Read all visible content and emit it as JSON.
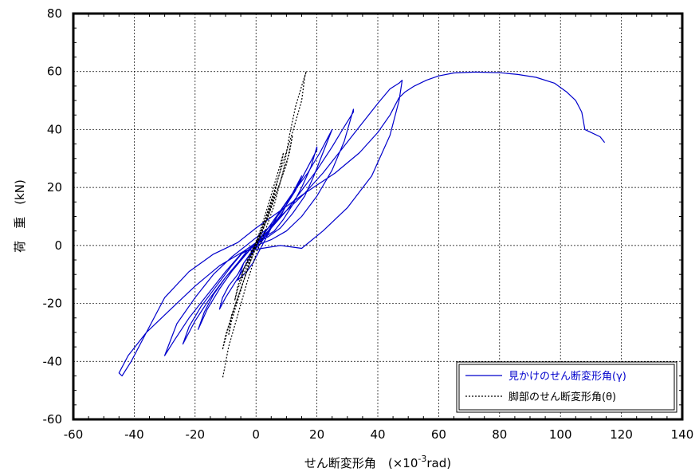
{
  "chart_data": {
    "type": "line",
    "xlabel": "せん断変形角　(×10",
    "xlabel_exp": "-3",
    "xlabel_unit": "rad)",
    "ylabel": "荷　重　(kN)",
    "xlim": [
      -60,
      140
    ],
    "ylim": [
      -60,
      80
    ],
    "xticks": [
      -60,
      -40,
      -20,
      0,
      20,
      40,
      60,
      80,
      100,
      120,
      140
    ],
    "yticks": [
      -60,
      -40,
      -20,
      0,
      20,
      40,
      60,
      80
    ],
    "grid": true,
    "legend_position": "bottom-right",
    "series": [
      {
        "name": "見かけのせん断変形角(γ)",
        "color": "#0000cc",
        "style": "solid",
        "x": [
          0,
          3,
          5,
          7,
          9,
          10,
          11,
          11,
          8,
          6,
          4,
          2,
          0,
          -2,
          -4,
          -5,
          -6,
          -6,
          -3,
          -1,
          1,
          3,
          5,
          8,
          10,
          13,
          15,
          15,
          12,
          10,
          7,
          5,
          3,
          1,
          -1,
          -4,
          -6,
          -9,
          -11,
          -12,
          -12,
          -10,
          -7,
          -4,
          -2,
          1,
          4,
          7,
          10,
          14,
          17,
          20,
          20,
          18,
          15,
          12,
          9,
          6,
          3,
          0,
          -3,
          -6,
          -10,
          -14,
          -17,
          -19,
          -19,
          -16,
          -12,
          -8,
          -4,
          0,
          4,
          8,
          12,
          17,
          21,
          24,
          25,
          22,
          19,
          16,
          12,
          8,
          4,
          0,
          -4,
          -8,
          -13,
          -18,
          -22,
          -24,
          -24,
          -20,
          -15,
          -10,
          -5,
          0,
          5,
          10,
          15,
          20,
          25,
          29,
          32,
          32,
          29,
          25,
          20,
          15,
          10,
          5,
          0,
          -5,
          -10,
          -16,
          -22,
          -27,
          -30,
          -30,
          -26,
          -20,
          -14,
          -8,
          -2,
          4,
          10,
          16,
          22,
          28,
          34,
          40,
          44,
          47,
          48,
          47,
          44,
          38,
          30,
          22,
          15,
          8,
          2,
          -4,
          -12,
          -20,
          -28,
          -36,
          -42,
          -45,
          -44,
          -41,
          -36,
          -30,
          -22,
          -14,
          -6,
          0,
          8,
          16,
          26,
          34,
          40,
          44,
          46,
          47,
          48,
          49,
          52,
          56,
          60,
          65,
          72,
          80,
          86,
          92,
          98,
          102,
          105,
          107,
          107.5,
          108,
          110,
          113,
          114.5
        ],
        "y": [
          0,
          3,
          6,
          9,
          12,
          14,
          16,
          16,
          12,
          9,
          6,
          3,
          0,
          -3,
          -6,
          -9,
          -12,
          -12,
          -9,
          -6,
          -2,
          2,
          6,
          10,
          14,
          19,
          24,
          24,
          18,
          14,
          10,
          6,
          3,
          0,
          -2,
          -6,
          -10,
          -14,
          -18,
          -22,
          -22,
          -18,
          -13,
          -8,
          -4,
          1,
          5,
          10,
          15,
          21,
          27,
          33,
          34,
          27,
          20,
          14,
          9,
          5,
          3,
          1,
          -2,
          -6,
          -11,
          -17,
          -23,
          -29,
          -29,
          -22,
          -15,
          -9,
          -4,
          1,
          6,
          12,
          18,
          25,
          32,
          38,
          40,
          32,
          24,
          17,
          11,
          6,
          3,
          1,
          -2,
          -7,
          -14,
          -21,
          -28,
          -34,
          -34,
          -26,
          -18,
          -11,
          -5,
          1,
          6,
          12,
          19,
          26,
          34,
          41,
          46,
          47,
          36,
          26,
          17,
          10,
          5,
          2,
          0,
          -3,
          -9,
          -17,
          -25,
          -33,
          -38,
          -38,
          -27,
          -18,
          -10,
          -4,
          1,
          6,
          12,
          18,
          25,
          33,
          41,
          49,
          54,
          56,
          57,
          50,
          38,
          24,
          13,
          5,
          -1,
          0,
          -1,
          -2,
          -7,
          -14,
          -22,
          -30,
          -38,
          -44,
          -45,
          -40,
          -30,
          -18,
          -9,
          -3,
          1,
          6,
          12,
          18,
          25,
          32,
          39,
          45,
          49,
          51,
          52,
          53,
          55,
          57,
          58.5,
          59.5,
          59.8,
          59.6,
          59,
          58,
          56,
          53,
          50,
          46,
          43,
          40,
          39,
          37.5,
          35.5
        ]
      },
      {
        "name": "脚部のせん断変形角(θ)",
        "color": "#000000",
        "style": "dashed",
        "x": [
          0,
          2,
          4,
          5,
          4,
          2,
          0,
          -2,
          -4,
          -5,
          -4,
          -2,
          0,
          2,
          4,
          6,
          7,
          6,
          4,
          2,
          0,
          -2,
          -4,
          -6,
          -7,
          -6,
          -4,
          -2,
          0,
          2,
          4,
          6,
          8,
          9,
          8,
          6,
          4,
          2,
          0,
          -2,
          -4,
          -6,
          -8,
          -9,
          -8,
          -5,
          -2,
          1,
          4,
          7,
          10,
          12,
          11,
          8,
          5,
          2,
          -1,
          -4,
          -7,
          -10,
          -11,
          -9,
          -6,
          -3,
          0,
          3,
          6,
          9,
          12,
          15,
          16,
          16.5,
          15,
          13,
          11,
          9,
          6,
          3,
          0,
          -3,
          -6,
          -9,
          -11
        ],
        "y": [
          0,
          5,
          10,
          14,
          10,
          5,
          0,
          -4,
          -8,
          -12,
          -8,
          -4,
          0,
          6,
          12,
          18,
          22,
          17,
          11,
          6,
          1,
          -4,
          -10,
          -15,
          -19,
          -14,
          -8,
          -3,
          1,
          7,
          14,
          21,
          28,
          32,
          26,
          18,
          11,
          5,
          1,
          -5,
          -12,
          -19,
          -26,
          -31,
          -24,
          -15,
          -6,
          2,
          10,
          19,
          28,
          38,
          32,
          22,
          13,
          5,
          -3,
          -12,
          -21,
          -31,
          -36,
          -28,
          -18,
          -9,
          0,
          9,
          19,
          29,
          39,
          50,
          58,
          60,
          55,
          48,
          38,
          26,
          14,
          5,
          -3,
          -13,
          -24,
          -35,
          -46
        ]
      }
    ]
  }
}
